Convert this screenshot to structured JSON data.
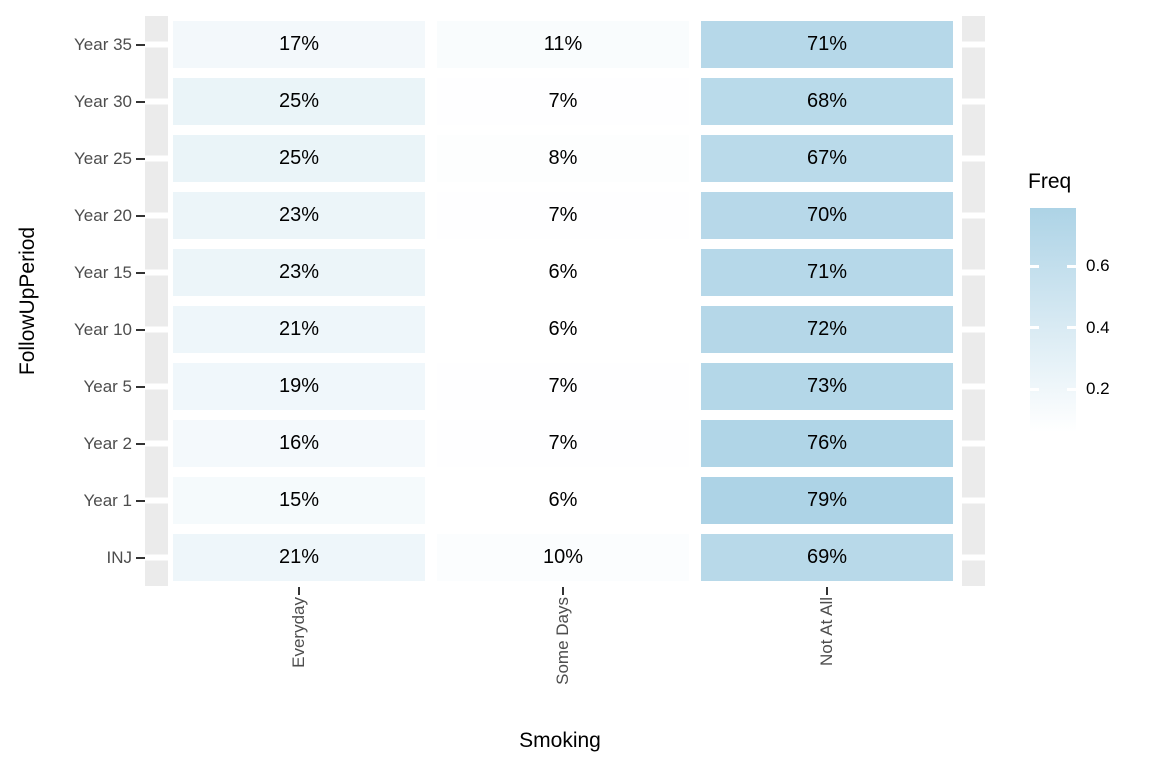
{
  "chart_data": {
    "type": "heatmap",
    "xlabel": "Smoking",
    "ylabel": "FollowUpPeriod",
    "x_categories": [
      "Everyday",
      "Some Days",
      "Not At All"
    ],
    "y_categories_top_to_bottom": [
      "Year 35",
      "Year 30",
      "Year 25",
      "Year 20",
      "Year 15",
      "Year 10",
      "Year 5",
      "Year 2",
      "Year 1",
      "INJ"
    ],
    "cell_labels": [
      [
        "17%",
        "11%",
        "71%"
      ],
      [
        "25%",
        "7%",
        "68%"
      ],
      [
        "25%",
        "8%",
        "67%"
      ],
      [
        "23%",
        "7%",
        "70%"
      ],
      [
        "23%",
        "6%",
        "71%"
      ],
      [
        "21%",
        "6%",
        "72%"
      ],
      [
        "19%",
        "7%",
        "73%"
      ],
      [
        "16%",
        "7%",
        "76%"
      ],
      [
        "15%",
        "6%",
        "79%"
      ],
      [
        "21%",
        "10%",
        "69%"
      ]
    ],
    "values": [
      [
        0.17,
        0.11,
        0.71
      ],
      [
        0.25,
        0.07,
        0.68
      ],
      [
        0.25,
        0.08,
        0.67
      ],
      [
        0.23,
        0.07,
        0.7
      ],
      [
        0.23,
        0.06,
        0.71
      ],
      [
        0.21,
        0.06,
        0.72
      ],
      [
        0.19,
        0.07,
        0.73
      ],
      [
        0.16,
        0.07,
        0.76
      ],
      [
        0.15,
        0.06,
        0.79
      ],
      [
        0.21,
        0.1,
        0.69
      ]
    ],
    "fill_domain": [
      0.06,
      0.79
    ],
    "legend": {
      "title": "Freq",
      "tick_labels": [
        "0.6",
        "0.4",
        "0.2"
      ],
      "tick_values": [
        0.6,
        0.4,
        0.2
      ],
      "position": "right"
    },
    "colors": {
      "fill_low": "#FFFFFF",
      "fill_high": "#ADD3E6",
      "panel_grey": "#EBEBEB",
      "axis_text": "#4D4D4D",
      "tick_mark": "#333333",
      "cell_text": "#000000",
      "background": "#FFFFFF"
    },
    "grid": "white major gridlines over grey panel margins",
    "legend_gradient_low_at_bottom": true
  }
}
